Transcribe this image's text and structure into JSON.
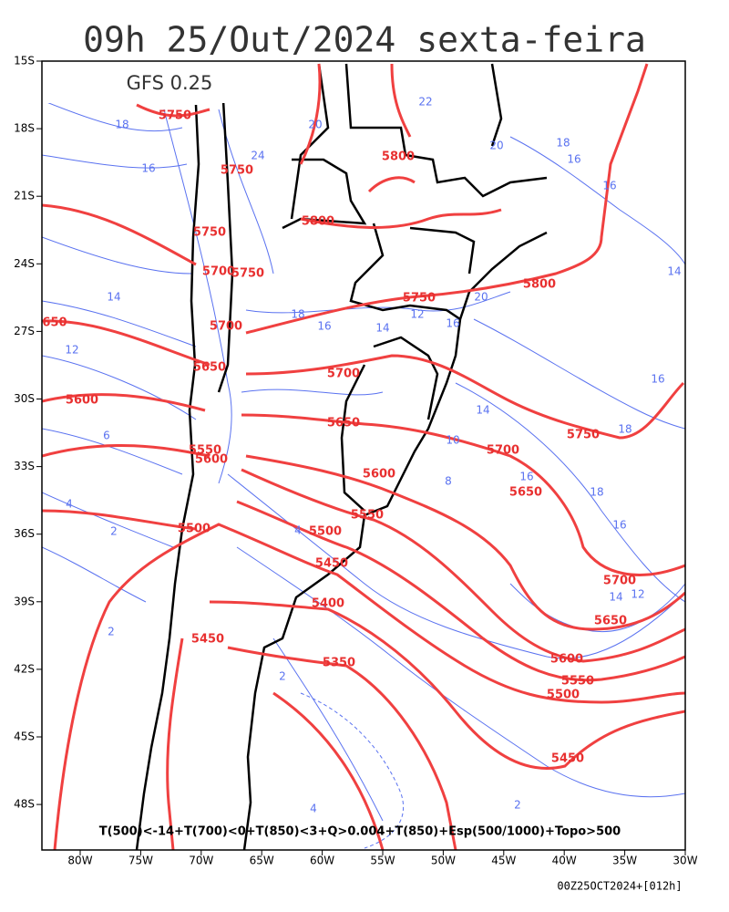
{
  "title": "09h 25/Out/2024 sexta-feira",
  "model": "GFS 0.25",
  "lat_labels": [
    "15S",
    "18S",
    "21S",
    "24S",
    "27S",
    "30S",
    "33S",
    "36S",
    "39S",
    "42S",
    "45S",
    "48S"
  ],
  "lon_labels": [
    "80W",
    "75W",
    "70W",
    "65W",
    "60W",
    "55W",
    "50W",
    "45W",
    "40W",
    "35W",
    "30W"
  ],
  "thickness_labels": [
    "5750",
    "5750",
    "5800",
    "5800",
    "5750",
    "5700",
    "5750",
    "5750",
    "5800",
    "650",
    "5700",
    "5650",
    "5700",
    "5600",
    "5650",
    "5750",
    "5700",
    "5550",
    "5600",
    "5600",
    "5650",
    "5550",
    "5500",
    "5500",
    "5450",
    "5700",
    "5400",
    "5650",
    "5450",
    "5600",
    "5350",
    "5550",
    "5500",
    "5450"
  ],
  "temperature_labels": [
    "22",
    "20",
    "18",
    "20",
    "18",
    "16",
    "16",
    "24",
    "16",
    "14",
    "14",
    "18",
    "16",
    "14",
    "12",
    "20",
    "16",
    "12",
    "16",
    "18",
    "6",
    "14",
    "10",
    "8",
    "16",
    "18",
    "16",
    "4",
    "2",
    "4",
    "14",
    "12",
    "2",
    "2",
    "2",
    "4"
  ],
  "legend_text": "T(500)<-14+T(700)<0+T(850)<3+Q>0.004+T(850)+Esp(500/1000)+Topo>500",
  "run_info": "00Z25OCT2024+[012h]"
}
